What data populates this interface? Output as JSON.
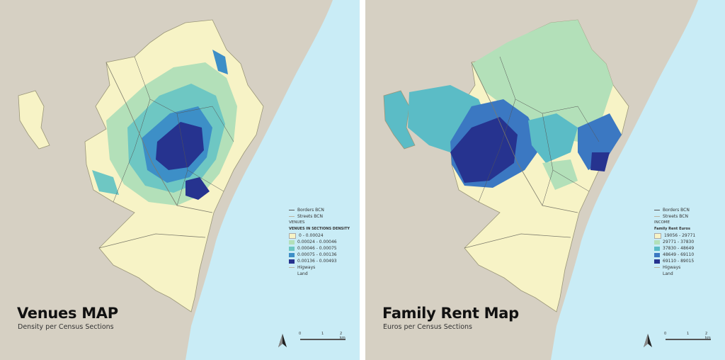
{
  "colors": {
    "sea": "#c9ecf6",
    "land_bg": "#d6d0c3",
    "city": "#f7f3c6",
    "city_border": "#9a9678"
  },
  "left_map": {
    "title": "Venues MAP",
    "subtitle": "Density per Census Sections",
    "legend": {
      "borders": "Borders BCN",
      "streets": "Streets BCN",
      "group": "VENUES",
      "field": "VENUES IN SECTIONS DENSITY",
      "classes": [
        {
          "label": "0 - 0.00024",
          "color": "#f7f3c6"
        },
        {
          "label": "0.00024 - 0.00046",
          "color": "#b3e0b9"
        },
        {
          "label": "0.00046 - 0.00075",
          "color": "#6ec7c3"
        },
        {
          "label": "0.00075 - 0.00136",
          "color": "#3d8fc7"
        },
        {
          "label": "0.00136 - 0.00493",
          "color": "#26338f"
        }
      ],
      "higways": "Higways",
      "land": "Land"
    },
    "scale": {
      "t0": "0",
      "t1": "1",
      "t2": "2 km"
    }
  },
  "right_map": {
    "title": "Family Rent Map",
    "subtitle": "Euros per Census Sections",
    "legend": {
      "borders": "Borders BCN",
      "streets": "Streets BCN",
      "group": "INCOME",
      "field": "Family Rent Euros",
      "classes": [
        {
          "label": "19056 - 29771",
          "color": "#f7f3c6"
        },
        {
          "label": "29771 - 37830",
          "color": "#b3e0b9"
        },
        {
          "label": "37830 - 48649",
          "color": "#5bbcc6"
        },
        {
          "label": "48649 - 69110",
          "color": "#3b78c2"
        },
        {
          "label": "69110 - 89015",
          "color": "#26338f"
        }
      ],
      "higways": "Higways",
      "land": "Land"
    },
    "scale": {
      "t0": "0",
      "t1": "1",
      "t2": "2 km"
    }
  }
}
